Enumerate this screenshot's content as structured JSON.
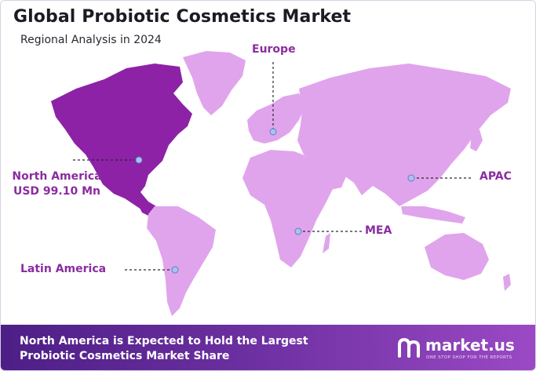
{
  "title": "Global Probiotic Cosmetics Market",
  "subtitle": "Regional Analysis in 2024",
  "colors": {
    "land": "#e0a4ec",
    "highlight": "#8d22a6",
    "label": "#8b2ca0",
    "marker": "#a9c3ef",
    "footer_start": "#4d1f86",
    "footer_end": "#9b49c4"
  },
  "regions": {
    "north_america": {
      "name": "North America",
      "value": "USD 99.10 Mn",
      "highlighted": true
    },
    "europe": {
      "name": "Europe"
    },
    "apac": {
      "name": "APAC"
    },
    "mea": {
      "name": "MEA"
    },
    "latin_america": {
      "name": "Latin America"
    }
  },
  "footer": {
    "line1": "North America is Expected to Hold the Largest",
    "line2": "Probiotic Cosmetics Market Share"
  },
  "brand": {
    "name": "market.us",
    "tagline": "ONE STOP SHOP FOR THE REPORTS"
  }
}
